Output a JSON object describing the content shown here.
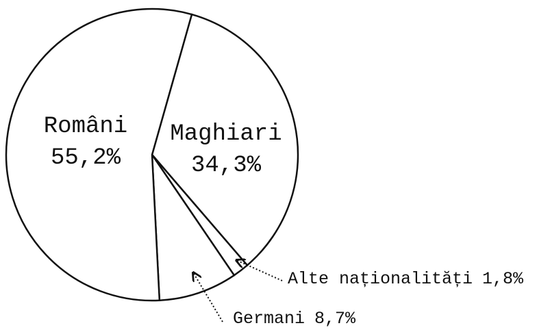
{
  "chart_data": {
    "type": "pie",
    "categories": [
      "Maghiari",
      "Alte naționalități",
      "Germani",
      "Români"
    ],
    "values": [
      34.3,
      1.8,
      8.7,
      55.2
    ],
    "value_labels": [
      "34,3%",
      "1,8%",
      "8,7%",
      "55,2%"
    ],
    "color": "#ffffff"
  }
}
